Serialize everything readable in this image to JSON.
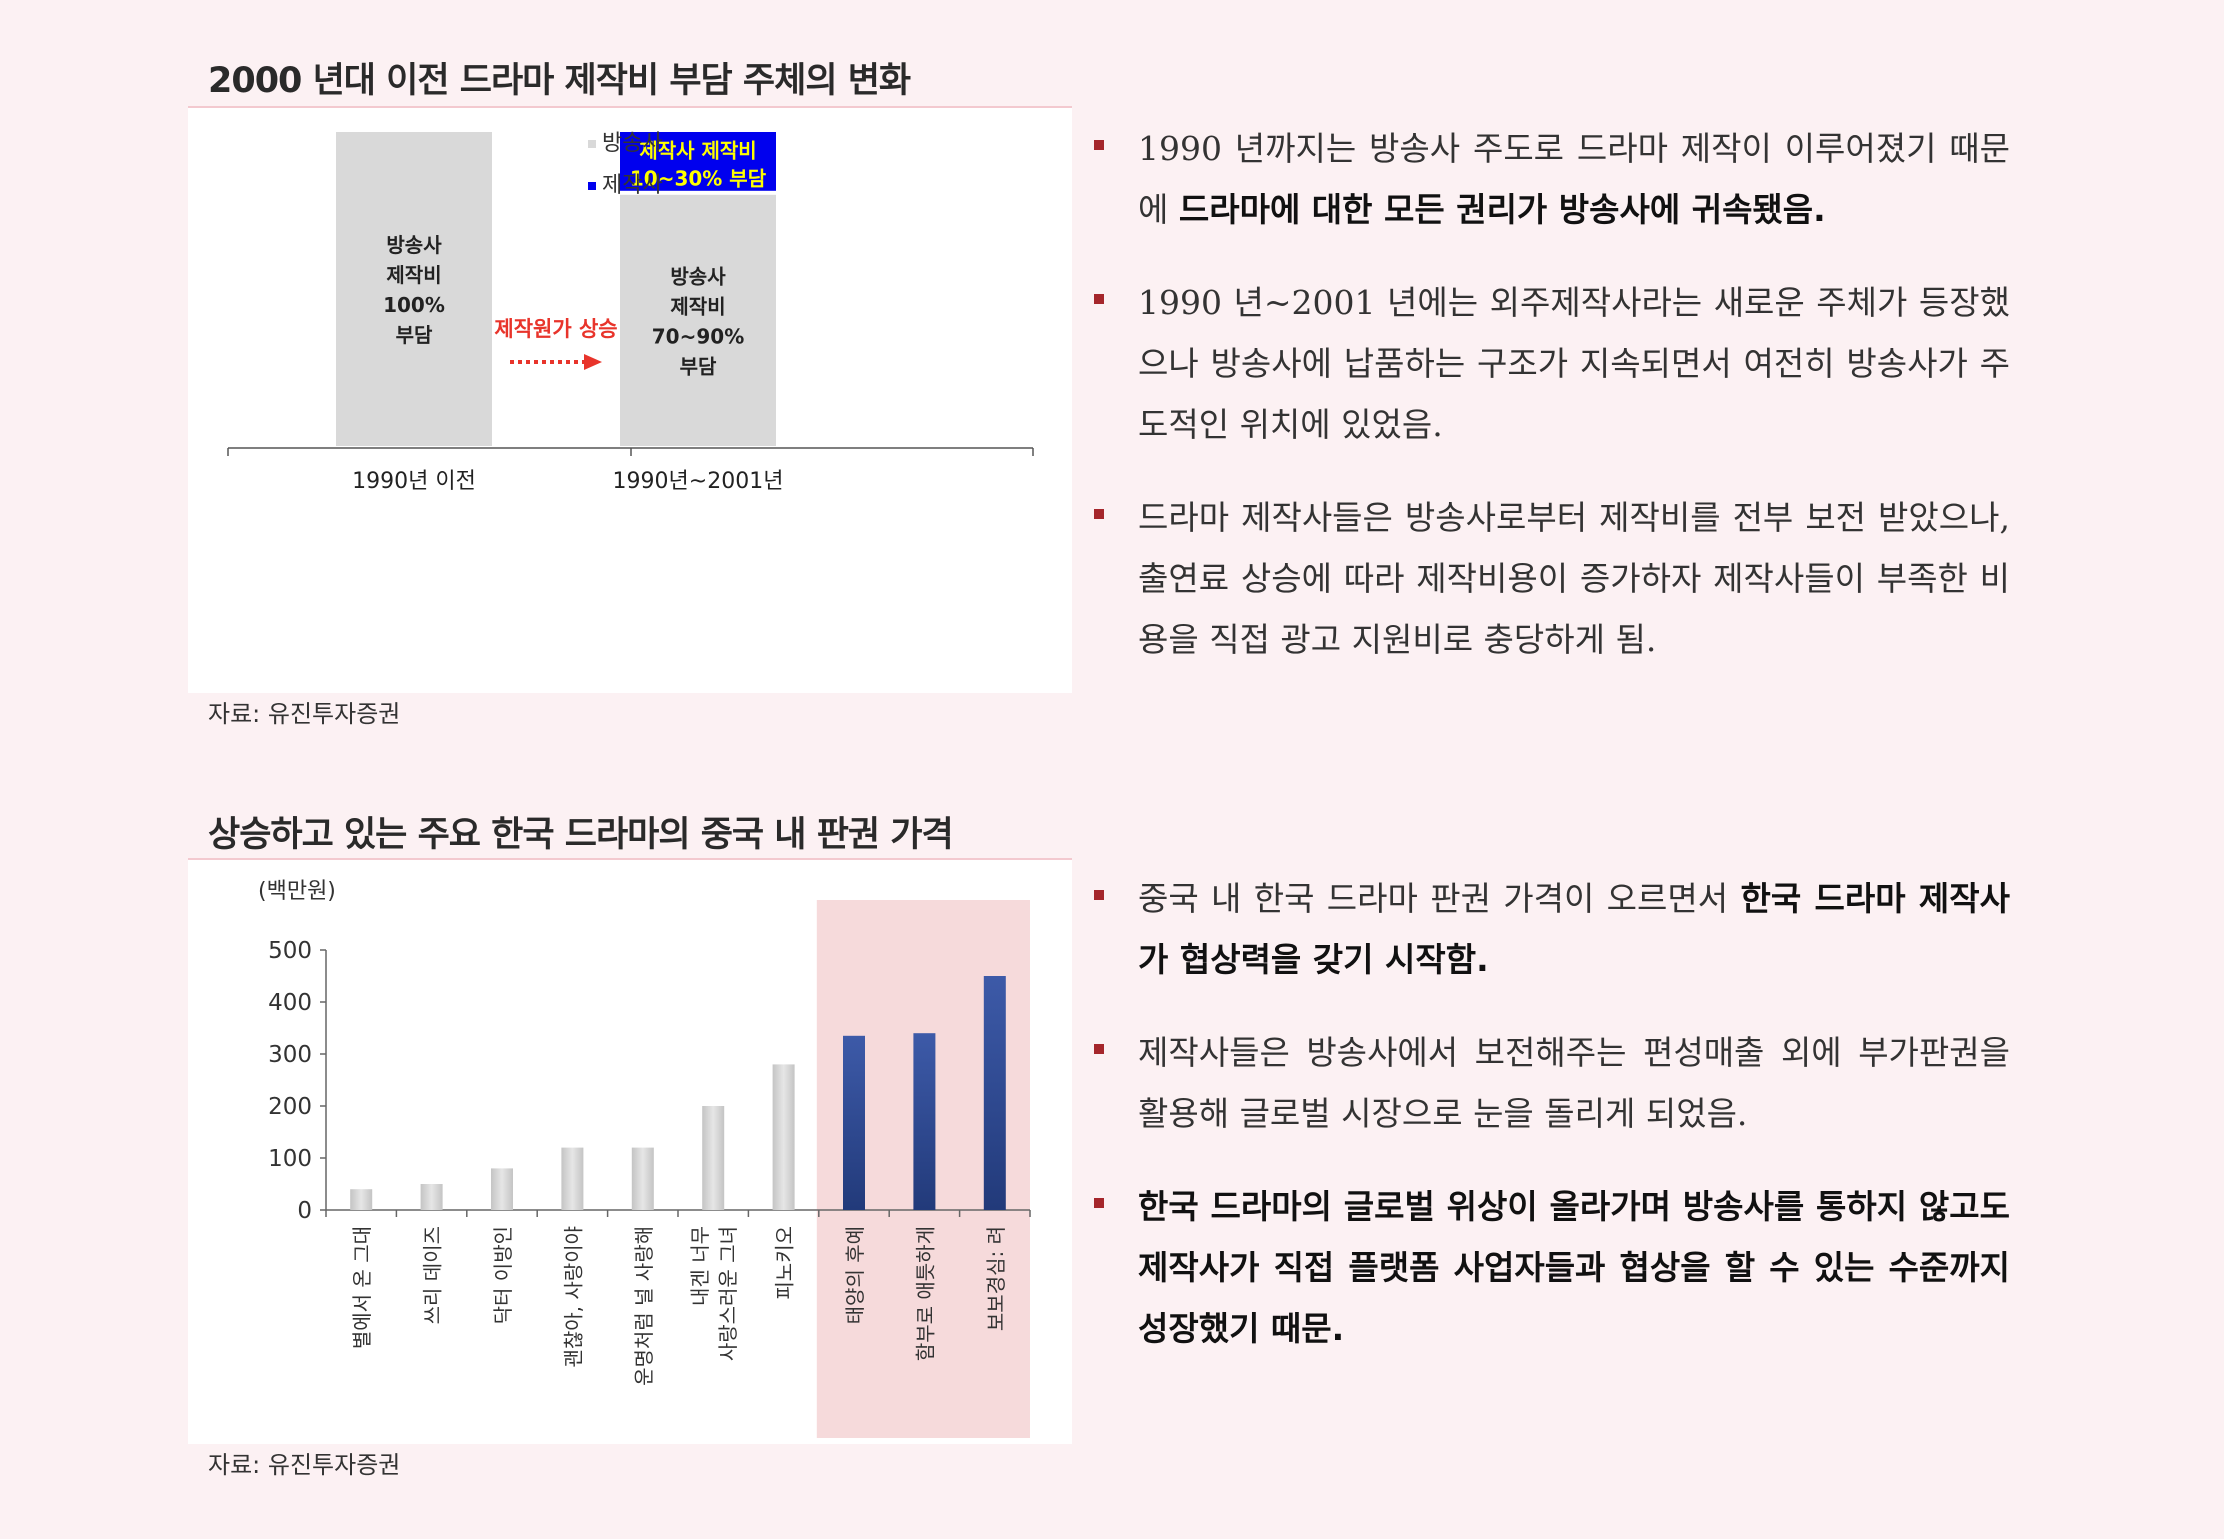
{
  "section1": {
    "title": "2000 년대 이전 드라마 제작비 부담 주체의 변화",
    "source": "자료: 유진투자증권",
    "legend": [
      {
        "label": "방송사",
        "color": "#d9d9d9"
      },
      {
        "label": "제작사",
        "color": "#0000ee"
      }
    ],
    "arrow_label": "제작원가 상승",
    "arrow_color": "#e8342b"
  },
  "section2": {
    "title": "상승하고 있는 주요 한국 드라마의 중국 내 판권 가격",
    "source": "자료: 유진투자증권"
  },
  "chart_data": [
    {
      "type": "bar",
      "stacked": true,
      "categories": [
        "1990년 이전",
        "1990년~2001년"
      ],
      "series": [
        {
          "name": "방송사",
          "values": [
            100,
            80
          ],
          "color": "#d9d9d9",
          "labels": [
            [
              "방송사",
              "제작비",
              "100%",
              "부담"
            ],
            [
              "방송사",
              "제작비",
              "70~90%",
              "부담"
            ]
          ]
        },
        {
          "name": "제작사",
          "values": [
            0,
            20
          ],
          "color": "#0000ee",
          "labels": [
            [],
            [
              "제작사 제작비",
              "10~30% 부담"
            ]
          ]
        }
      ],
      "ylim": [
        0,
        100
      ],
      "legend_position": "top-center"
    },
    {
      "type": "bar",
      "ylabel": "(백만원)",
      "categories": [
        [
          "별에서 온 그대"
        ],
        [
          "쓰리 데이즈"
        ],
        [
          "닥터 이방인"
        ],
        [
          "괜찮아, 사랑이야"
        ],
        [
          "운명처럼 널 사랑해"
        ],
        [
          "내겐 너무",
          "사랑스러운 그녀"
        ],
        [
          "피노키오"
        ],
        [
          "태양의 후예"
        ],
        [
          "함부로 애틋하게"
        ],
        [
          "보보경심: 려"
        ]
      ],
      "values": [
        40,
        50,
        80,
        120,
        120,
        200,
        280,
        335,
        340,
        450
      ],
      "highlight": [
        false,
        false,
        false,
        false,
        false,
        false,
        false,
        true,
        true,
        true
      ],
      "colors": {
        "normal": "#cfcfcf",
        "highlight": "#2e4a94",
        "highlight_band": "#f6dadb"
      },
      "ylim": [
        0,
        500
      ],
      "yticks": [
        0,
        100,
        200,
        300,
        400,
        500
      ]
    }
  ],
  "bullets1": [
    {
      "parts": [
        {
          "t": "1990 년까지는 방송사 주도로 드라마 제작이 이루어졌기 때문에 ",
          "b": false
        },
        {
          "t": "드라마에 대한 모든 권리가 방송사에 귀속됐음.",
          "b": true
        }
      ]
    },
    {
      "parts": [
        {
          "t": "1990 년~2001 년에는 외주제작사라는 새로운 주체가 등장했으나 방송사에 납품하는 구조가 지속되면서 여전히 방송사가 주도적인 위치에 있었음.",
          "b": false
        }
      ]
    },
    {
      "parts": [
        {
          "t": "드라마 제작사들은 방송사로부터 제작비를 전부 보전 받았으나, 출연료 상승에 따라 제작비용이 증가하자 제작사들이 부족한 비용을 직접 광고 지원비로 충당하게 됨.",
          "b": false
        }
      ]
    }
  ],
  "bullets2": [
    {
      "parts": [
        {
          "t": "중국 내 한국 드라마 판권 가격이 오르면서 ",
          "b": false
        },
        {
          "t": "한국 드라마 제작사가 협상력을 갖기 시작함.",
          "b": true
        }
      ]
    },
    {
      "parts": [
        {
          "t": "제작사들은 방송사에서 보전해주는 편성매출 외에 부가판권을 활용해 글로벌 시장으로 눈을 돌리게 되었음.",
          "b": false
        }
      ]
    },
    {
      "parts": [
        {
          "t": "한국 드라마의 글로벌 위상이 올라가며 방송사를 통하지 않고도 제작사가 직접 플랫폼 사업자들과 협상을 할 수 있는 수준까지 성장했기 때문.",
          "b": true
        }
      ]
    }
  ]
}
